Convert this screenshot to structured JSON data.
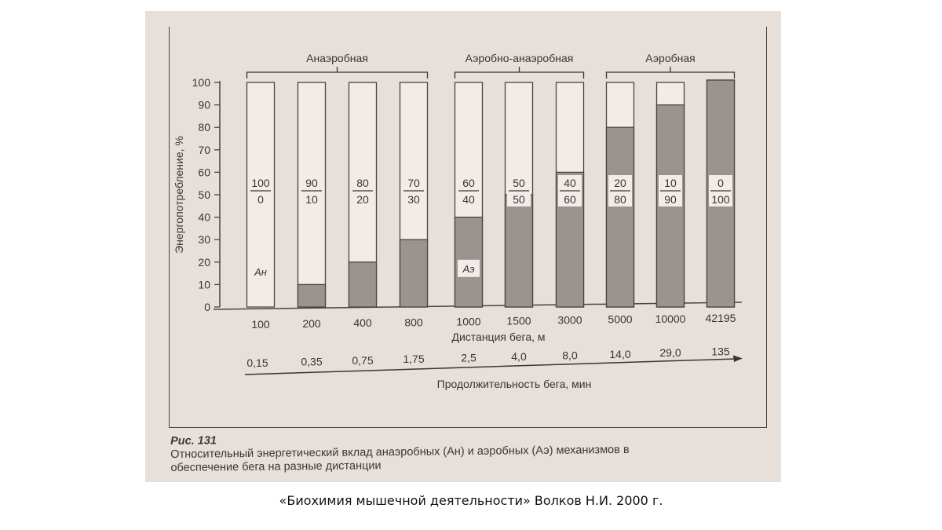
{
  "chart_data": {
    "type": "bar",
    "stacked": true,
    "title": "Относительный энергетический вклад анаэробных (Ан) и аэробных (Аэ) механизмов в обеспечение бега на разные дистанции",
    "figure_label": "Рис. 131",
    "xlabel": "Дистанция бега, м",
    "x2label": "Продолжительность бега, мин",
    "ylabel": "Энергопотребление, %",
    "ylim": [
      0,
      100
    ],
    "yticks": [
      0,
      10,
      20,
      30,
      40,
      50,
      60,
      70,
      80,
      90,
      100
    ],
    "categories": [
      "100",
      "200",
      "400",
      "800",
      "1000",
      "1500",
      "3000",
      "5000",
      "10000",
      "42195"
    ],
    "durations_min": [
      "0,15",
      "0,35",
      "0,75",
      "1,75",
      "2,5",
      "4,0",
      "8,0",
      "14,0",
      "29,0",
      "135"
    ],
    "series": [
      {
        "name": "Аэ (аэробные)",
        "color": "#9b9390",
        "values": [
          0,
          10,
          20,
          30,
          40,
          50,
          60,
          80,
          90,
          100
        ]
      },
      {
        "name": "Ан (анаэробные)",
        "color": "#f1ece8",
        "values": [
          100,
          90,
          80,
          70,
          60,
          50,
          40,
          20,
          10,
          0
        ]
      }
    ],
    "ratio_labels": [
      {
        "top": "100",
        "bottom": "0"
      },
      {
        "top": "90",
        "bottom": "10"
      },
      {
        "top": "80",
        "bottom": "20"
      },
      {
        "top": "70",
        "bottom": "30"
      },
      {
        "top": "60",
        "bottom": "40"
      },
      {
        "top": "50",
        "bottom": "50"
      },
      {
        "top": "40",
        "bottom": "60"
      },
      {
        "top": "20",
        "bottom": "80"
      },
      {
        "top": "10",
        "bottom": "90"
      },
      {
        "top": "0",
        "bottom": "100"
      }
    ],
    "groups": [
      {
        "label": "Анаэробная",
        "from": 0,
        "to": 3
      },
      {
        "label": "Аэробно-анаэробная",
        "from": 4,
        "to": 6
      },
      {
        "label": "Аэробная",
        "from": 7,
        "to": 9
      }
    ],
    "annotations": [
      "Ан",
      "Аэ"
    ],
    "grid": false,
    "legend": "none"
  },
  "caption": {
    "figure": "Рис. 131",
    "line1": "Относительный энергетический вклад анаэробных (Ан) и аэробных (Аэ) механизмов в",
    "line2": "обеспечение бега на разные дистанции"
  },
  "source": "«Биохимия мышечной деятельности» Волков Н.И. 2000 г."
}
